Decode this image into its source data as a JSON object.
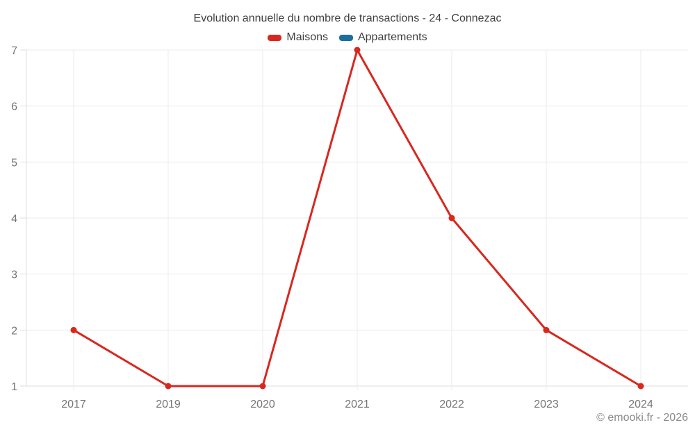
{
  "chart": {
    "title": "Evolution annuelle du nombre de transactions - 24 - Connezac",
    "legend": [
      {
        "label": "Maisons",
        "color": "#d7281f"
      },
      {
        "label": "Appartements",
        "color": "#1c6e9c"
      }
    ],
    "copyright": "© emooki.fr - 2026"
  },
  "chart_data": {
    "type": "line",
    "title": "Evolution annuelle du nombre de transactions - 24 - Connezac",
    "categories": [
      "2017",
      "2019",
      "2020",
      "2021",
      "2022",
      "2023",
      "2024"
    ],
    "series": [
      {
        "name": "Maisons",
        "color": "#d7281f",
        "values": [
          2,
          1,
          1,
          7,
          4,
          2,
          1
        ]
      },
      {
        "name": "Appartements",
        "color": "#1c6e9c",
        "values": []
      }
    ],
    "xlabel": "",
    "ylabel": "",
    "ylim": [
      1,
      7
    ],
    "yticks": [
      1,
      2,
      3,
      4,
      5,
      6,
      7
    ],
    "grid": true,
    "legend_position": "top"
  },
  "style_colors": {
    "grid": "#ebebeb",
    "axis": "#dedede",
    "tick_label": "#757575",
    "title_text": "#3f3f3f",
    "copyright_text": "#8a8a8a"
  }
}
